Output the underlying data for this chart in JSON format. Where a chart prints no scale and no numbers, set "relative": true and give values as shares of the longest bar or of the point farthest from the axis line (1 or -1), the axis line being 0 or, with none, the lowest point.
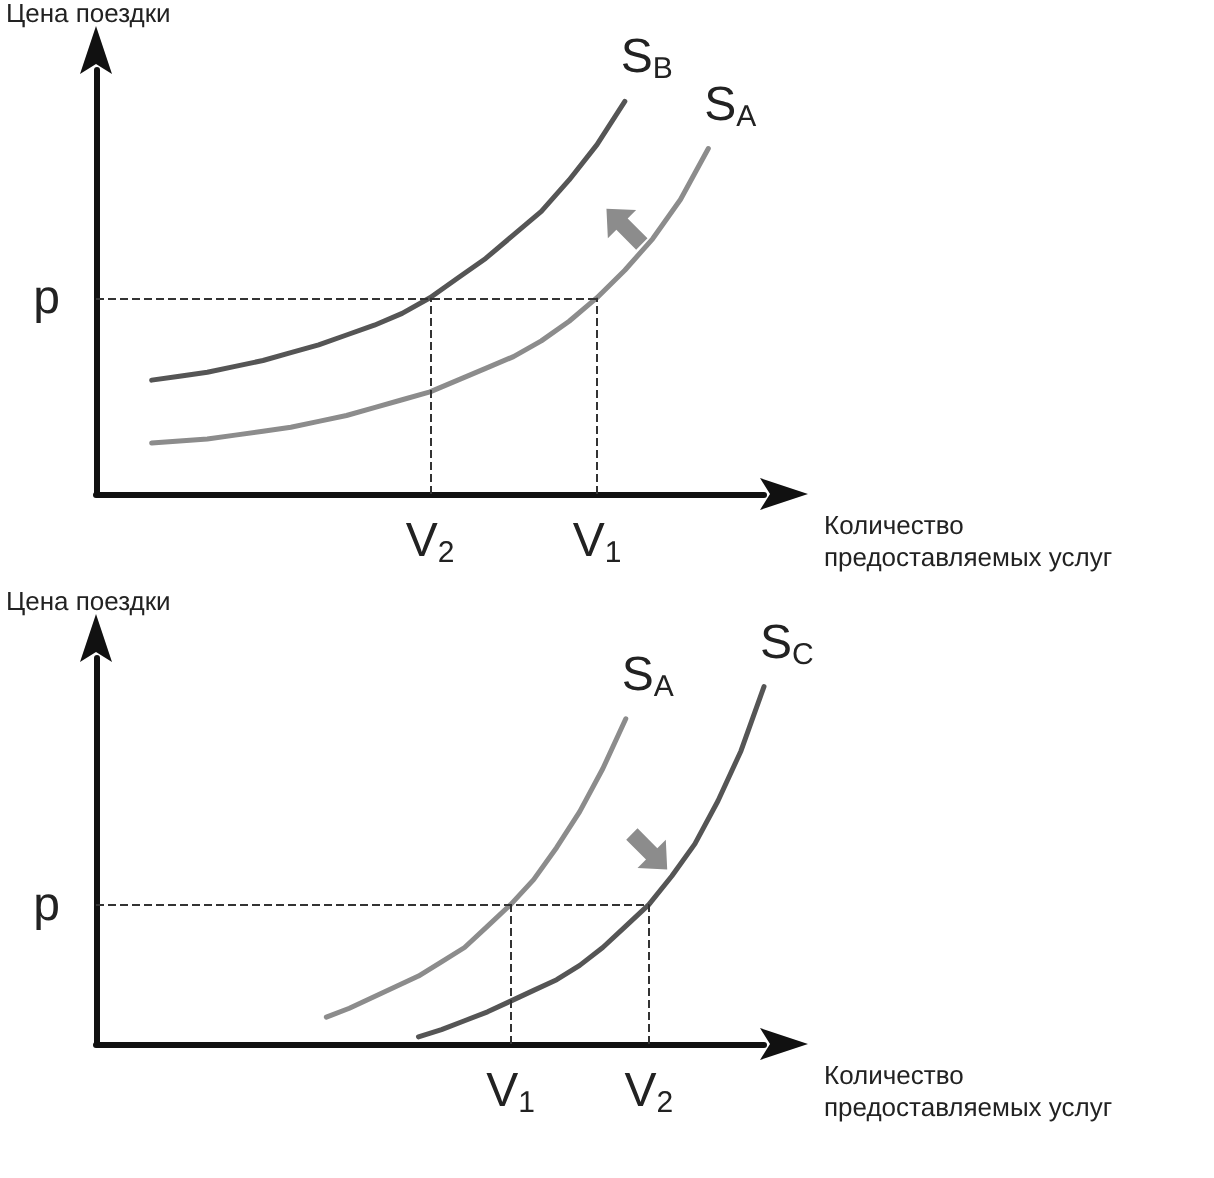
{
  "chart_data": [
    {
      "type": "line",
      "relative": true,
      "ylabel": "Цена поездки",
      "xlabel": "Количество предоставляемых услуг",
      "legend": false,
      "grid": false,
      "marker": "none",
      "line_style": "solid",
      "categories": [
        null,
        null,
        null,
        null,
        null,
        null,
        null,
        null,
        null,
        null,
        null,
        null,
        "V$_{2}$",
        null,
        null,
        null,
        null,
        null,
        "V$_{1}$",
        null,
        null,
        null,
        null,
        null,
        null
      ],
      "ref_lines": [
        {
          "axis": "y",
          "value": 0.5,
          "label": "p",
          "line_style": "dashed"
        },
        {
          "axis": "x",
          "value": "V$_{2}$",
          "line_style": "dashed"
        },
        {
          "axis": "x",
          "value": "V$_{1}$",
          "line_style": "dashed"
        }
      ],
      "series": [
        {
          "name": "S$_{B}$",
          "color": "#555555",
          "values": [
            null,
            null,
            0.29,
            0.3,
            0.31,
            0.325,
            0.34,
            0.36,
            0.38,
            0.405,
            0.43,
            0.46,
            0.5,
            0.55,
            0.6,
            0.66,
            0.72,
            0.8,
            0.89,
            1.0,
            null,
            null,
            null,
            null,
            null
          ]
        },
        {
          "name": "S$_{A}$",
          "color": "#8c8c8c",
          "values": [
            null,
            null,
            0.13,
            0.135,
            0.14,
            0.15,
            0.16,
            0.17,
            0.185,
            0.2,
            0.22,
            0.24,
            0.26,
            0.29,
            0.32,
            0.35,
            0.39,
            0.44,
            0.5,
            0.57,
            0.65,
            0.75,
            0.88,
            null,
            null
          ]
        }
      ]
    },
    {
      "type": "line",
      "relative": true,
      "ylabel": "Цена поездки",
      "xlabel": "Количество предоставляемых услуг",
      "legend": false,
      "grid": false,
      "marker": "none",
      "line_style": "solid",
      "categories": [
        null,
        null,
        null,
        null,
        null,
        null,
        null,
        null,
        null,
        null,
        null,
        null,
        null,
        null,
        null,
        null,
        null,
        null,
        "V$_{1}$",
        null,
        null,
        null,
        null,
        null,
        "V$_{2}$",
        null,
        null,
        null,
        null,
        null
      ],
      "ref_lines": [
        {
          "axis": "y",
          "value": 0.39,
          "label": "p",
          "line_style": "dashed"
        },
        {
          "axis": "x",
          "value": "V$_{1}$",
          "line_style": "dashed"
        },
        {
          "axis": "x",
          "value": "V$_{2}$",
          "line_style": "dashed"
        }
      ],
      "series": [
        {
          "name": "S$_{A}$",
          "color": "#8c8c8c",
          "values": [
            null,
            null,
            null,
            null,
            null,
            null,
            null,
            null,
            null,
            null,
            0.075,
            0.1,
            0.13,
            0.16,
            0.19,
            0.23,
            0.27,
            0.33,
            0.39,
            0.46,
            0.55,
            0.65,
            0.77,
            0.91,
            null,
            null,
            null,
            null,
            null,
            null
          ]
        },
        {
          "name": "S$_{C}$",
          "color": "#555555",
          "values": [
            null,
            null,
            null,
            null,
            null,
            null,
            null,
            null,
            null,
            null,
            null,
            null,
            null,
            null,
            0.02,
            0.04,
            0.065,
            0.09,
            0.12,
            0.15,
            0.18,
            0.22,
            0.27,
            0.33,
            0.39,
            0.47,
            0.56,
            0.68,
            0.82,
            1.0
          ]
        }
      ]
    }
  ]
}
